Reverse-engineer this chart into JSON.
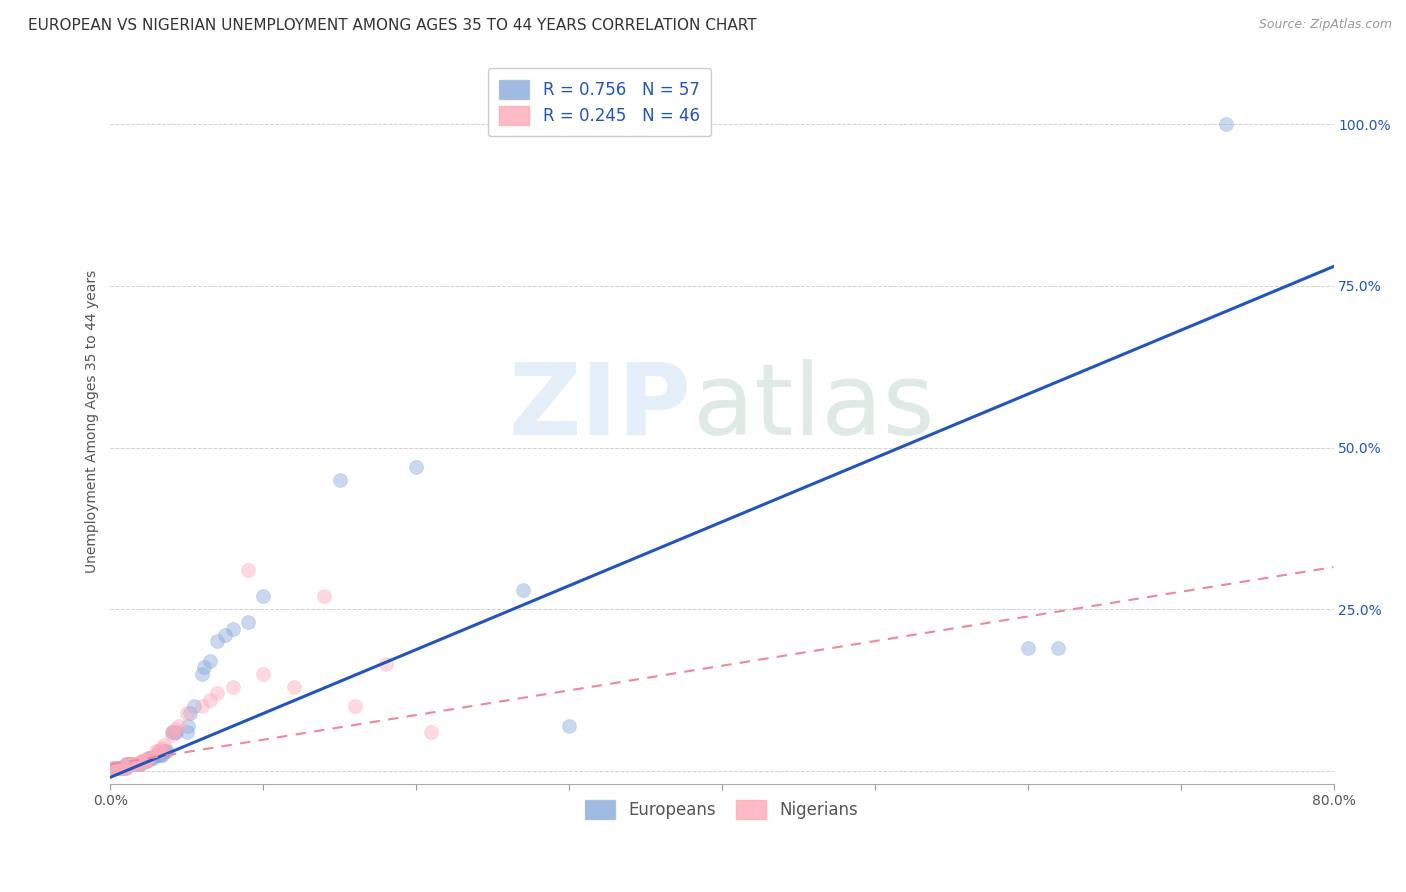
{
  "title": "EUROPEAN VS NIGERIAN UNEMPLOYMENT AMONG AGES 35 TO 44 YEARS CORRELATION CHART",
  "source": "Source: ZipAtlas.com",
  "ylabel": "Unemployment Among Ages 35 to 44 years",
  "xlim": [
    0.0,
    0.8
  ],
  "ylim": [
    -0.02,
    1.1
  ],
  "european_R": 0.756,
  "european_N": 57,
  "nigerian_R": 0.245,
  "nigerian_N": 46,
  "european_color": "#88AADD",
  "nigerian_color": "#FFAABB",
  "trendline_eu_color": "#2255BB",
  "trendline_ng_color": "#EE8899",
  "background_color": "#FFFFFF",
  "grid_color": "#CCCCCC",
  "title_fontsize": 11,
  "axis_label_fontsize": 10,
  "tick_fontsize": 10,
  "legend_fontsize": 12,
  "source_fontsize": 9,
  "marker_size": 100,
  "marker_alpha": 0.45,
  "eu_trendline_x0": 0.0,
  "eu_trendline_y0": -0.01,
  "eu_trendline_x1": 0.8,
  "eu_trendline_y1": 0.78,
  "ng_trendline_x0": 0.0,
  "ng_trendline_y0": 0.01,
  "ng_trendline_x1": 0.8,
  "ng_trendline_y1": 0.315,
  "european_x": [
    0.002,
    0.003,
    0.004,
    0.005,
    0.006,
    0.007,
    0.008,
    0.009,
    0.01,
    0.01,
    0.011,
    0.012,
    0.013,
    0.014,
    0.015,
    0.016,
    0.017,
    0.018,
    0.019,
    0.02,
    0.021,
    0.022,
    0.023,
    0.024,
    0.025,
    0.026,
    0.027,
    0.028,
    0.03,
    0.031,
    0.032,
    0.033,
    0.034,
    0.035,
    0.036,
    0.037,
    0.04,
    0.041,
    0.042,
    0.043,
    0.05,
    0.051,
    0.052,
    0.055,
    0.06,
    0.061,
    0.065,
    0.07,
    0.075,
    0.08,
    0.09,
    0.1,
    0.15,
    0.2,
    0.27,
    0.3,
    0.62
  ],
  "european_y": [
    0.005,
    0.005,
    0.005,
    0.005,
    0.005,
    0.005,
    0.005,
    0.005,
    0.005,
    0.01,
    0.01,
    0.01,
    0.01,
    0.01,
    0.01,
    0.01,
    0.01,
    0.01,
    0.01,
    0.01,
    0.015,
    0.015,
    0.015,
    0.015,
    0.02,
    0.02,
    0.02,
    0.02,
    0.025,
    0.025,
    0.025,
    0.025,
    0.025,
    0.03,
    0.03,
    0.03,
    0.06,
    0.06,
    0.06,
    0.06,
    0.06,
    0.07,
    0.09,
    0.1,
    0.15,
    0.16,
    0.17,
    0.2,
    0.21,
    0.22,
    0.23,
    0.27,
    0.45,
    0.47,
    0.28,
    0.07,
    0.19
  ],
  "nigerian_x": [
    0.002,
    0.003,
    0.004,
    0.005,
    0.006,
    0.007,
    0.008,
    0.009,
    0.01,
    0.011,
    0.012,
    0.013,
    0.014,
    0.015,
    0.016,
    0.017,
    0.018,
    0.019,
    0.02,
    0.021,
    0.022,
    0.023,
    0.024,
    0.025,
    0.03,
    0.031,
    0.032,
    0.033,
    0.034,
    0.035,
    0.04,
    0.041,
    0.042,
    0.045,
    0.05,
    0.06,
    0.065,
    0.07,
    0.08,
    0.09,
    0.1,
    0.12,
    0.14,
    0.16,
    0.18,
    0.21
  ],
  "nigerian_y": [
    0.005,
    0.005,
    0.005,
    0.005,
    0.005,
    0.005,
    0.005,
    0.005,
    0.005,
    0.01,
    0.01,
    0.01,
    0.01,
    0.01,
    0.01,
    0.01,
    0.01,
    0.01,
    0.015,
    0.015,
    0.015,
    0.015,
    0.02,
    0.02,
    0.03,
    0.03,
    0.03,
    0.03,
    0.035,
    0.04,
    0.055,
    0.06,
    0.065,
    0.07,
    0.09,
    0.1,
    0.11,
    0.12,
    0.13,
    0.31,
    0.15,
    0.13,
    0.27,
    0.1,
    0.165,
    0.06
  ]
}
